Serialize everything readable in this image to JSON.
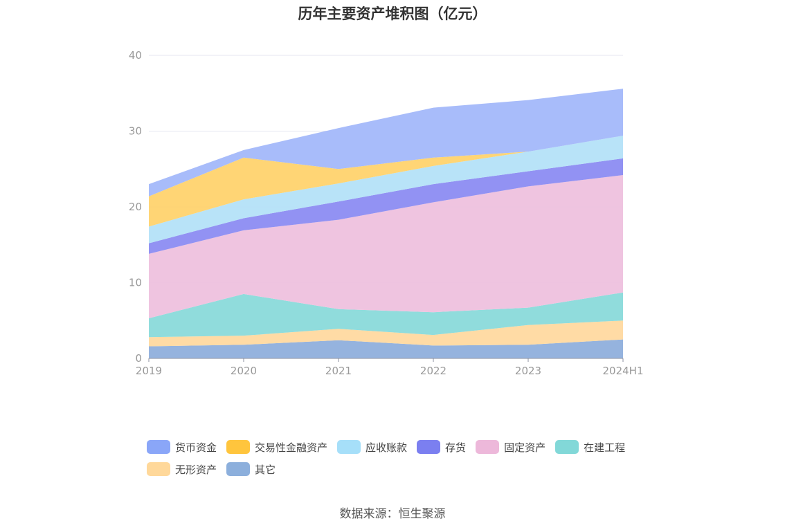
{
  "chart_data": {
    "type": "area",
    "stacked": true,
    "title": "历年主要资产堆积图（亿元）",
    "categories": [
      "2019",
      "2020",
      "2021",
      "2022",
      "2023",
      "2024H1"
    ],
    "ylim": [
      0,
      40
    ],
    "yticks": [
      0,
      10,
      20,
      30,
      40
    ],
    "grid": true,
    "legend_position": "bottom",
    "series": [
      {
        "name": "其它",
        "color": "#8FAFDC",
        "values": [
          1.6,
          1.8,
          2.4,
          1.7,
          1.8,
          2.5
        ]
      },
      {
        "name": "无形资产",
        "color": "#FFD9A0",
        "values": [
          1.2,
          1.2,
          1.5,
          1.4,
          2.6,
          2.5
        ]
      },
      {
        "name": "在建工程",
        "color": "#8ADADA",
        "values": [
          2.5,
          5.5,
          2.6,
          3.0,
          2.3,
          3.7
        ]
      },
      {
        "name": "固定资产",
        "color": "#EEC1DE",
        "values": [
          8.5,
          8.4,
          11.8,
          14.5,
          16.0,
          15.5
        ]
      },
      {
        "name": "存货",
        "color": "#8C8CF2",
        "values": [
          1.4,
          1.6,
          2.4,
          2.4,
          2.0,
          2.2
        ]
      },
      {
        "name": "应收账款",
        "color": "#B4E2F8",
        "values": [
          2.2,
          2.5,
          2.4,
          2.4,
          2.6,
          3.0
        ]
      },
      {
        "name": "交易性金融资产",
        "color": "#FFD36E",
        "values": [
          4.0,
          5.5,
          1.9,
          1.1,
          0.0,
          0.0
        ]
      },
      {
        "name": "货币资金",
        "color": "#A3B8FA",
        "values": [
          1.6,
          1.0,
          5.4,
          6.6,
          6.8,
          6.2
        ]
      }
    ],
    "legend": [
      {
        "name": "货币资金",
        "color": "#8AA6F8"
      },
      {
        "name": "交易性金融资产",
        "color": "#FFC53D"
      },
      {
        "name": "应收账款",
        "color": "#A6DFF9"
      },
      {
        "name": "存货",
        "color": "#7B7FF0"
      },
      {
        "name": "固定资产",
        "color": "#EDB8DA"
      },
      {
        "name": "在建工程",
        "color": "#82D8D8"
      },
      {
        "name": "无形资产",
        "color": "#FFD89A"
      },
      {
        "name": "其它",
        "color": "#8CAFDC"
      }
    ]
  },
  "source": "数据来源：恒生聚源"
}
